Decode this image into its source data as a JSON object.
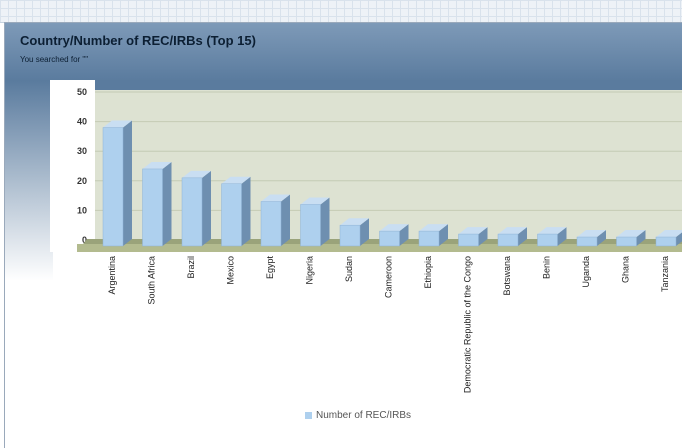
{
  "header": {
    "title": "Country/Number of REC/IRBs (Top 15)",
    "subtitle": "You searched for \"\""
  },
  "chart_data": {
    "type": "bar",
    "title": "Country/Number of REC/IRBs (Top 15)",
    "xlabel": "",
    "ylabel": "",
    "ylim": [
      0,
      50
    ],
    "yticks": [
      0,
      10,
      20,
      30,
      40,
      50
    ],
    "grid": true,
    "legend_position": "bottom",
    "categories": [
      "Argentina",
      "South Africa",
      "Brazil",
      "Mexico",
      "Egypt",
      "Nigeria",
      "Sudan",
      "Cameroon",
      "Ethiopia",
      "Democratic Republic of the Congo",
      "Botswana",
      "Benin",
      "Uganda",
      "Ghana",
      "Tanzania"
    ],
    "series": [
      {
        "name": "Number of REC/IRBs",
        "values": [
          38,
          24,
          21,
          19,
          13,
          12,
          5,
          3,
          3,
          2,
          2,
          2,
          1,
          1,
          1
        ]
      }
    ],
    "colors": {
      "bar_front": "#aed0ee",
      "bar_side": "#6e8fb0",
      "bar_top": "#c9def2",
      "plot_bg": "#dde2d2",
      "floor": "#9aa37a"
    }
  }
}
